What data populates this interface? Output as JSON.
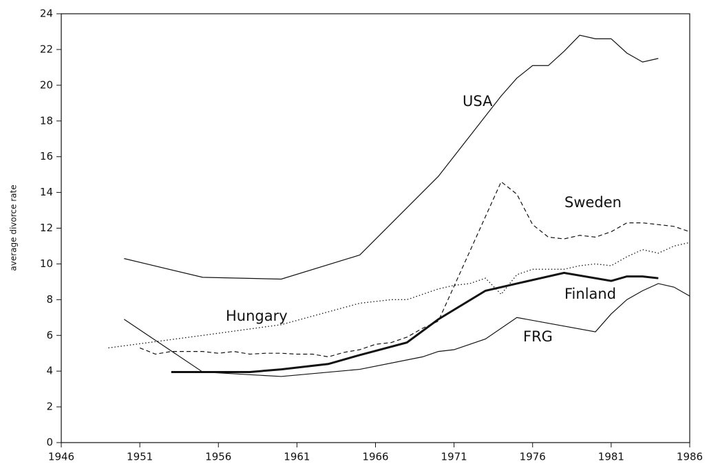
{
  "chart_data": {
    "type": "line",
    "y_label": "average divorce rate",
    "xlim": [
      1946,
      1986
    ],
    "ylim": [
      0,
      24
    ],
    "xticks": [
      1946,
      1951,
      1956,
      1961,
      1966,
      1971,
      1976,
      1981,
      1986
    ],
    "yticks": [
      0,
      2,
      4,
      6,
      8,
      10,
      12,
      14,
      16,
      18,
      20,
      22,
      24
    ],
    "grid": false,
    "series": [
      {
        "name": "USA",
        "color": "#111111",
        "style": "solid",
        "x": [
          1950,
          1955,
          1960,
          1965,
          1970,
          1974,
          1975,
          1976,
          1977,
          1978,
          1979,
          1980,
          1981,
          1982,
          1983,
          1984
        ],
        "values": [
          10.3,
          9.25,
          9.15,
          10.5,
          14.9,
          19.4,
          20.4,
          21.1,
          21.1,
          21.9,
          22.8,
          22.6,
          22.6,
          21.8,
          21.3,
          21.5
        ]
      },
      {
        "name": "Sweden",
        "color": "#111111",
        "style": "dashed",
        "x": [
          1951,
          1952,
          1953,
          1954,
          1955,
          1956,
          1957,
          1958,
          1959,
          1960,
          1961,
          1962,
          1963,
          1964,
          1965,
          1966,
          1967,
          1968,
          1969,
          1970,
          1974,
          1975,
          1976,
          1977,
          1978,
          1979,
          1980,
          1981,
          1982,
          1983,
          1984,
          1985,
          1986
        ],
        "values": [
          5.3,
          4.95,
          5.1,
          5.1,
          5.1,
          5.0,
          5.1,
          4.95,
          5.0,
          5.0,
          4.95,
          4.95,
          4.8,
          5.05,
          5.2,
          5.5,
          5.6,
          5.9,
          6.4,
          6.8,
          14.6,
          13.9,
          12.2,
          11.5,
          11.4,
          11.6,
          11.5,
          11.8,
          12.3,
          12.3,
          12.2,
          12.1,
          11.8
        ]
      },
      {
        "name": "Finland",
        "color": "#111111",
        "style": "thick",
        "x": [
          1953,
          1955,
          1958,
          1960,
          1963,
          1965,
          1968,
          1970,
          1973,
          1975,
          1978,
          1981,
          1982,
          1983,
          1984
        ],
        "values": [
          3.95,
          3.95,
          3.95,
          4.1,
          4.4,
          4.9,
          5.6,
          6.9,
          8.5,
          8.9,
          9.5,
          9.05,
          9.3,
          9.3,
          9.2
        ]
      },
      {
        "name": "Hungary",
        "color": "#111111",
        "style": "dotted",
        "x": [
          1949,
          1955,
          1960,
          1965,
          1966,
          1967,
          1968,
          1969,
          1970,
          1971,
          1972,
          1973,
          1974,
          1975,
          1976,
          1977,
          1978,
          1979,
          1980,
          1981,
          1982,
          1983,
          1984,
          1985,
          1986
        ],
        "values": [
          5.3,
          6.0,
          6.6,
          7.8,
          7.9,
          8.0,
          8.0,
          8.3,
          8.6,
          8.8,
          8.9,
          9.2,
          8.3,
          9.4,
          9.7,
          9.7,
          9.7,
          9.9,
          10.0,
          9.9,
          10.4,
          10.8,
          10.6,
          11.0,
          11.2
        ]
      },
      {
        "name": "FRG",
        "color": "#111111",
        "style": "solid",
        "x": [
          1950,
          1955,
          1960,
          1965,
          1969,
          1970,
          1971,
          1973,
          1975,
          1980,
          1981,
          1982,
          1983,
          1984,
          1985,
          1986
        ],
        "values": [
          6.9,
          3.95,
          3.7,
          4.1,
          4.8,
          5.1,
          5.2,
          5.8,
          7.0,
          6.2,
          7.2,
          8.0,
          8.5,
          8.9,
          8.7,
          8.2
        ]
      }
    ]
  }
}
